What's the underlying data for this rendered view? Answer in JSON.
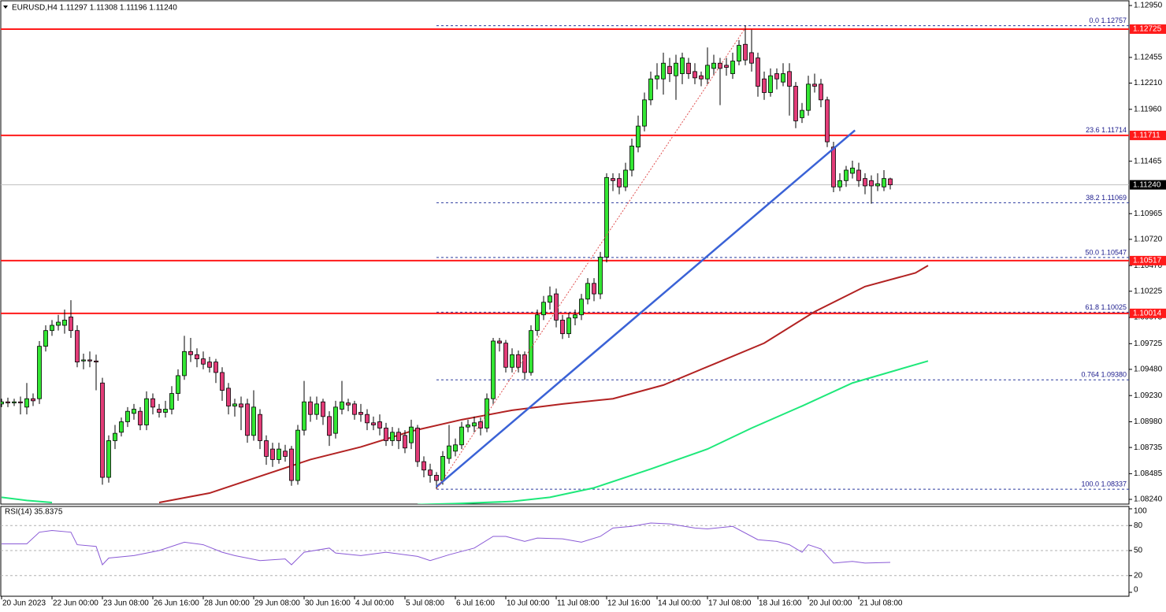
{
  "chart_data": {
    "type": "candlestick",
    "header": "EURUSD,H4  1.11297 1.11308 1.11196 1.11240",
    "xlim": [
      -0.125,
      178.875
    ],
    "xticks": [
      {
        "value": 0,
        "label": "20 Jun 2023"
      },
      {
        "value": 8,
        "label": "22 Jun 00:00"
      },
      {
        "value": 16,
        "label": "23 Jun 08:00"
      },
      {
        "value": 24,
        "label": "26 Jun 16:00"
      },
      {
        "value": 32,
        "label": "28 Jun 00:00"
      },
      {
        "value": 40,
        "label": "29 Jun 08:00"
      },
      {
        "value": 48,
        "label": "30 Jun 16:00"
      },
      {
        "value": 56,
        "label": "4 Jul 00:00"
      },
      {
        "value": 64,
        "label": "5 Jul 08:00"
      },
      {
        "value": 72,
        "label": "6 Jul 16:00"
      },
      {
        "value": 80,
        "label": "10 Jul 00:00"
      },
      {
        "value": 88,
        "label": "11 Jul 08:00"
      },
      {
        "value": 96,
        "label": "12 Jul 16:00"
      },
      {
        "value": 104,
        "label": "14 Jul 00:00"
      },
      {
        "value": 112,
        "label": "17 Jul 08:00"
      },
      {
        "value": 120,
        "label": "18 Jul 16:00"
      },
      {
        "value": 128,
        "label": "20 Jul 00:00"
      },
      {
        "value": 136,
        "label": "21 Jul 08:00"
      }
    ],
    "ylim": [
      1.08195,
      1.12995
    ],
    "yticks": [
      {
        "value": 1.1295,
        "label": "1.12950"
      },
      {
        "value": 1.12455,
        "label": "1.12455"
      },
      {
        "value": 1.1221,
        "label": "1.12210"
      },
      {
        "value": 1.1196,
        "label": "1.11960"
      },
      {
        "value": 1.11465,
        "label": "1.11465"
      },
      {
        "value": 1.10965,
        "label": "1.10965"
      },
      {
        "value": 1.1072,
        "label": "1.10720"
      },
      {
        "value": 1.1047,
        "label": "1.10470"
      },
      {
        "value": 1.10225,
        "label": "1.10225"
      },
      {
        "value": 1.09975,
        "label": "1.09975"
      },
      {
        "value": 1.09725,
        "label": "1.09725"
      },
      {
        "value": 1.0948,
        "label": "1.09480"
      },
      {
        "value": 1.0923,
        "label": "1.09230"
      },
      {
        "value": 1.0898,
        "label": "1.08980"
      },
      {
        "value": 1.08735,
        "label": "1.08735"
      },
      {
        "value": 1.08485,
        "label": "1.08485"
      },
      {
        "value": 1.0824,
        "label": "1.08240"
      }
    ],
    "up_color": "#33e633",
    "down_color": "#e23c78",
    "open": [
      1.0915,
      1.0917,
      1.0916,
      1.0917,
      1.0912,
      1.092,
      1.092,
      1.097,
      1.0985,
      1.099,
      1.099,
      1.0998,
      1.0985,
      1.0956,
      1.0957,
      1.0956,
      1.0935,
      1.0845,
      1.088,
      1.0888,
      1.0898,
      1.0906,
      1.0908,
      1.0895,
      1.092,
      1.091,
      1.0907,
      1.091,
      1.0925,
      1.0942,
      1.0965,
      1.0962,
      1.0958,
      1.0955,
      1.0955,
      1.0945,
      1.093,
      1.0913,
      1.0915,
      1.0915,
      1.0885,
      1.0905,
      1.088,
      1.0872,
      1.0862,
      1.087,
      1.0872,
      1.0842,
      1.089,
      1.0917,
      1.0905,
      1.0917,
      1.0903,
      1.0887,
      1.091,
      1.0916,
      1.0915,
      1.0907,
      1.0905,
      1.0897,
      1.0898,
      1.0892,
      1.088,
      1.0888,
      1.0885,
      1.0878,
      1.0892,
      1.086,
      1.0852,
      1.0847,
      1.0842,
      1.0863,
      1.087,
      1.0876,
      1.0893,
      1.0894,
      1.0898,
      1.0892,
      1.092,
      1.0975,
      1.0973,
      1.095,
      1.0962,
      1.0962,
      1.0945,
      1.0985,
      1.1,
      1.1012,
      1.102,
      1.0995,
      1.0982,
      1.0997,
      1.1,
      1.1015,
      1.103,
      1.102,
      1.1055,
      1.113,
      1.113,
      1.1122,
      1.1138,
      1.116,
      1.118,
      1.1205,
      1.1225,
      1.1225,
      1.1237,
      1.1228,
      1.123,
      1.124,
      1.1232,
      1.1228,
      1.1225,
      1.1235,
      1.124,
      1.1238,
      1.123,
      1.1242,
      1.1258,
      1.125,
      1.1245,
      1.1225,
      1.1212,
      1.123,
      1.1222,
      1.1232,
      1.1218,
      1.1188,
      1.1195,
      1.122,
      1.122,
      1.1205,
      1.116,
      1.1122,
      1.1128,
      1.1135,
      1.1138,
      1.113,
      1.1128,
      1.1123,
      1.1122,
      1.11297
    ],
    "high": [
      1.092,
      1.0921,
      1.092,
      1.0922,
      1.0935,
      1.0925,
      1.0975,
      1.099,
      1.0995,
      1.1,
      1.1005,
      1.1014,
      1.099,
      1.0963,
      1.0965,
      1.0962,
      1.094,
      1.0885,
      1.0895,
      1.0902,
      1.0912,
      1.0915,
      1.0912,
      1.0927,
      1.0925,
      1.0915,
      1.0918,
      1.0932,
      1.0948,
      1.098,
      1.0978,
      1.0968,
      1.0965,
      1.096,
      1.0958,
      1.095,
      1.0935,
      1.092,
      1.0922,
      1.092,
      1.0928,
      1.091,
      1.0885,
      1.0878,
      1.0878,
      1.0876,
      1.0875,
      1.0895,
      1.0937,
      1.0922,
      1.0922,
      1.092,
      1.0908,
      1.0918,
      1.0937,
      1.092,
      1.0918,
      1.0915,
      1.091,
      1.0903,
      1.0905,
      1.0897,
      1.0893,
      1.0892,
      1.089,
      1.09,
      1.0895,
      1.0865,
      1.0858,
      1.085,
      1.087,
      1.0895,
      1.0882,
      1.0898,
      1.09,
      1.0903,
      1.0902,
      1.0925,
      1.0978,
      1.0978,
      1.0976,
      1.0968,
      1.0966,
      1.0965,
      1.099,
      1.1005,
      1.1018,
      1.1027,
      1.1025,
      1.1,
      1.1002,
      1.1005,
      1.102,
      1.1035,
      1.1035,
      1.106,
      1.1135,
      1.1135,
      1.1135,
      1.1145,
      1.1168,
      1.119,
      1.1212,
      1.1232,
      1.124,
      1.125,
      1.1245,
      1.1248,
      1.125,
      1.1245,
      1.124,
      1.1232,
      1.1255,
      1.1248,
      1.1245,
      1.1245,
      1.125,
      1.1262,
      1.1276,
      1.1272,
      1.125,
      1.1232,
      1.1235,
      1.1235,
      1.124,
      1.124,
      1.1222,
      1.1202,
      1.1228,
      1.123,
      1.1225,
      1.1208,
      1.1165,
      1.1135,
      1.1142,
      1.1147,
      1.1145,
      1.1135,
      1.1133,
      1.1135,
      1.1138,
      1.11308
    ],
    "low": [
      1.0912,
      1.0912,
      1.0913,
      1.0905,
      1.0905,
      1.0913,
      1.0915,
      1.0965,
      1.098,
      1.0985,
      1.0982,
      1.0978,
      1.095,
      1.0948,
      1.095,
      1.0928,
      1.0838,
      1.084,
      1.0872,
      1.0884,
      1.0893,
      1.09,
      1.089,
      1.089,
      1.0905,
      1.0902,
      1.0902,
      1.0905,
      1.0918,
      1.0938,
      1.0955,
      1.095,
      1.0948,
      1.0945,
      1.0935,
      1.0918,
      1.0905,
      1.0903,
      1.089,
      1.0878,
      1.088,
      1.0872,
      1.0857,
      1.0855,
      1.0858,
      1.086,
      1.0837,
      1.0838,
      1.0885,
      1.0898,
      1.09,
      1.0895,
      1.0875,
      1.0882,
      1.0905,
      1.0908,
      1.09,
      1.0898,
      1.089,
      1.089,
      1.0885,
      1.0875,
      1.0875,
      1.0872,
      1.0868,
      1.0872,
      1.0855,
      1.0845,
      1.084,
      1.0834,
      1.0838,
      1.0858,
      1.0865,
      1.0872,
      1.0888,
      1.0888,
      1.0885,
      1.0888,
      1.0915,
      1.0965,
      1.0945,
      1.0945,
      1.0945,
      1.0938,
      1.0942,
      1.098,
      1.0995,
      1.1005,
      1.0988,
      1.0977,
      1.0978,
      1.099,
      1.0995,
      1.101,
      1.1013,
      1.1015,
      1.105,
      1.1118,
      1.1115,
      1.1118,
      1.1132,
      1.1155,
      1.1175,
      1.12,
      1.1215,
      1.121,
      1.1222,
      1.1205,
      1.122,
      1.1225,
      1.122,
      1.1218,
      1.122,
      1.1228,
      1.12,
      1.1228,
      1.1225,
      1.1238,
      1.1238,
      1.1232,
      1.1208,
      1.1205,
      1.1208,
      1.1215,
      1.1218,
      1.119,
      1.1178,
      1.1183,
      1.119,
      1.1212,
      1.1198,
      1.116,
      1.1117,
      1.1118,
      1.1122,
      1.113,
      1.1122,
      1.1115,
      1.1106,
      1.1118,
      1.1118,
      1.11196
    ],
    "close": [
      1.0917,
      1.0916,
      1.0917,
      1.0916,
      1.092,
      1.0918,
      1.097,
      1.0985,
      1.099,
      1.0993,
      1.0995,
      1.0985,
      1.0955,
      1.0957,
      1.0956,
      1.0955,
      1.0845,
      1.088,
      1.0887,
      1.0898,
      1.0908,
      1.091,
      1.0895,
      1.092,
      1.0912,
      1.0907,
      1.091,
      1.0925,
      1.0942,
      1.0965,
      1.0962,
      1.0958,
      1.0953,
      1.095,
      1.0945,
      1.0928,
      1.0913,
      1.0915,
      1.0912,
      1.0885,
      1.0912,
      1.088,
      1.0865,
      1.0862,
      1.0872,
      1.0865,
      1.0842,
      1.089,
      1.0917,
      1.0905,
      1.0915,
      1.0903,
      1.0885,
      1.0912,
      1.0917,
      1.0914,
      1.0905,
      1.0905,
      1.0897,
      1.0895,
      1.0892,
      1.088,
      1.0888,
      1.088,
      1.0873,
      1.0893,
      1.086,
      1.0852,
      1.0847,
      1.0842,
      1.0865,
      1.0875,
      1.0876,
      1.0893,
      1.0895,
      1.0897,
      1.0892,
      1.092,
      1.0975,
      1.0973,
      1.095,
      1.0962,
      1.095,
      1.0945,
      1.0985,
      1.1,
      1.1012,
      1.1018,
      1.0995,
      1.0982,
      1.0997,
      1.1,
      1.1015,
      1.103,
      1.102,
      1.1055,
      1.1131,
      1.1128,
      1.1122,
      1.1138,
      1.1161,
      1.118,
      1.1205,
      1.1225,
      1.1228,
      1.124,
      1.123,
      1.124,
      1.1245,
      1.123,
      1.1226,
      1.1225,
      1.1238,
      1.124,
      1.1235,
      1.1236,
      1.1242,
      1.1257,
      1.1243,
      1.124,
      1.1218,
      1.1212,
      1.1228,
      1.1225,
      1.123,
      1.1218,
      1.1185,
      1.1195,
      1.122,
      1.1218,
      1.1205,
      1.1165,
      1.1122,
      1.1128,
      1.1138,
      1.114,
      1.1128,
      1.1123,
      1.1123,
      1.1125,
      1.113,
      1.1124
    ],
    "moving_averages": [
      {
        "color": "#b22222",
        "x": [
          25,
          33,
          41,
          49,
          57,
          65,
          73,
          81,
          89,
          97,
          105,
          113,
          121,
          129,
          137,
          145,
          147
        ],
        "values": [
          1.0821,
          1.083,
          1.0846,
          1.0862,
          1.0874,
          1.0889,
          1.09,
          1.0909,
          1.0915,
          1.092,
          1.0933,
          1.0953,
          1.0973,
          1.1003,
          1.1027,
          1.104,
          1.1047
        ]
      },
      {
        "color": "#1ee87a",
        "x": [
          0,
          4,
          8,
          12,
          66,
          72,
          81,
          87,
          94,
          103,
          112,
          119,
          127,
          135,
          147
        ],
        "values": [
          1.0826,
          1.0823,
          1.0821,
          null,
          1.0819,
          1.082,
          1.0822,
          1.0826,
          1.0835,
          1.0853,
          1.0872,
          1.0892,
          1.0913,
          1.0935,
          1.0956
        ]
      }
    ],
    "hline_color": "#ff1a1a",
    "hlines": [
      {
        "value": 1.12725,
        "label": "1.12725"
      },
      {
        "value": 1.11711,
        "label": "1.11711"
      },
      {
        "value": 1.10517,
        "label": "1.10517"
      },
      {
        "value": 1.10014,
        "label": "1.10014"
      }
    ],
    "current_price": {
      "value": 1.1124,
      "label": "1.11240"
    },
    "trendline": {
      "color": "#3a62d6",
      "x": [
        69,
        135.4
      ],
      "values": [
        1.0836,
        1.1176
      ]
    },
    "fib": {
      "color": "#2b3a9e",
      "connector_color": "#e05050",
      "x": [
        69,
        118.25
      ],
      "levels": [
        {
          "value": 1.12757,
          "label": "0.0 1.12757"
        },
        {
          "value": 1.11714,
          "label": "23.6 1.11714"
        },
        {
          "value": 1.11069,
          "label": "38.2 1.11069"
        },
        {
          "value": 1.10547,
          "label": "50.0 1.10547"
        },
        {
          "value": 1.10025,
          "label": "61.8 1.10025"
        },
        {
          "value": 1.0938,
          "label": "0.764 1.09380"
        },
        {
          "value": 1.08337,
          "label": "100.0 1.08337"
        }
      ]
    },
    "rsi": {
      "title": "RSI(14) 35.8375",
      "color": "#8a5ad6",
      "ylim": [
        0,
        100
      ],
      "yticks": [
        0,
        20,
        50,
        80,
        100
      ],
      "levels": [
        20,
        50,
        80
      ],
      "x": [
        0,
        4,
        6,
        8,
        11,
        12,
        15,
        16,
        17,
        21,
        25,
        29,
        32,
        35,
        37,
        41,
        45,
        46,
        48,
        52,
        53,
        57,
        61,
        66,
        68,
        71,
        75,
        78,
        80,
        83,
        85,
        89,
        92,
        95,
        97,
        100,
        103,
        106,
        110,
        112,
        116,
        120,
        123,
        125,
        127,
        128,
        130,
        132,
        135,
        137,
        141
      ],
      "values": [
        58,
        58,
        72,
        74,
        72,
        57,
        55,
        33,
        41,
        44,
        50,
        60,
        57,
        48,
        44,
        38,
        40,
        33,
        48,
        53,
        47,
        44,
        48,
        43,
        38,
        45,
        53,
        67,
        67,
        61,
        65,
        64,
        60,
        67,
        77,
        79,
        83,
        82,
        77,
        76,
        79,
        63,
        61,
        57,
        48,
        57,
        52,
        35,
        37,
        35,
        35.8375
      ]
    }
  }
}
